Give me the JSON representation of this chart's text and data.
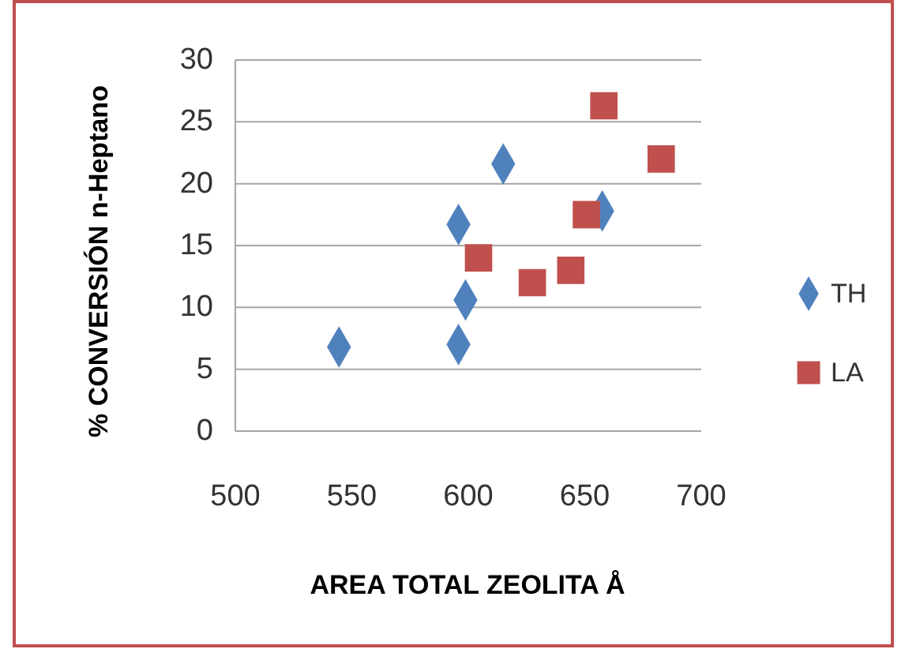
{
  "chart_data": {
    "type": "scatter",
    "xlabel": "AREA TOTAL ZEOLITA Å",
    "ylabel": "% CONVERSIÓN n-Heptano",
    "xlim": [
      500,
      700
    ],
    "xticks": [
      500,
      550,
      600,
      650,
      700
    ],
    "ylim": [
      0,
      30
    ],
    "yticks": [
      0,
      5,
      10,
      15,
      20,
      25,
      30
    ],
    "grid": "y",
    "legend": "right",
    "series": [
      {
        "name": "TH",
        "color": "#4f81bd",
        "marker": "diamond",
        "x": [
          544.5,
          595.8,
          598.8,
          595.8,
          615,
          657.5
        ],
        "values": [
          6.8,
          16.7,
          10.6,
          7.0,
          21.6,
          17.8
        ]
      },
      {
        "name": "LA",
        "color": "#c0504d",
        "marker": "square",
        "x": [
          658.2,
          682.8,
          650.7,
          604.4,
          627.5,
          644
        ],
        "values": [
          26.3,
          22.0,
          17.5,
          14.0,
          12.0,
          13.0
        ]
      }
    ]
  }
}
